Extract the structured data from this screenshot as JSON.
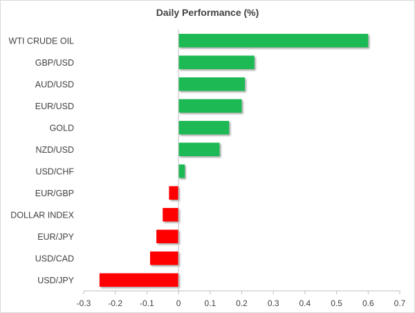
{
  "chart_data": {
    "type": "bar",
    "orientation": "horizontal",
    "title": "Daily Performance (%)",
    "xlabel": "",
    "ylabel": "",
    "xlim": [
      -0.3,
      0.7
    ],
    "xticks": [
      "-0.3",
      "-0.2",
      "-0.1",
      "0",
      "0.1",
      "0.2",
      "0.3",
      "0.4",
      "0.5",
      "0.6",
      "0.7"
    ],
    "categories": [
      "WTI CRUDE OIL",
      "GBP/USD",
      "AUD/USD",
      "EUR/USD",
      "GOLD",
      "NZD/USD",
      "USD/CHF",
      "EUR/GBP",
      "DOLLAR INDEX",
      "EUR/JPY",
      "USD/CAD",
      "USD/JPY"
    ],
    "values": [
      0.6,
      0.24,
      0.21,
      0.2,
      0.16,
      0.13,
      0.02,
      -0.03,
      -0.05,
      -0.07,
      -0.09,
      -0.25
    ],
    "grid": false,
    "legend": "none",
    "colors": {
      "positive": "#1db954",
      "negative": "#ff0000",
      "axis": "#bfbfbf",
      "text": "#404040"
    }
  }
}
